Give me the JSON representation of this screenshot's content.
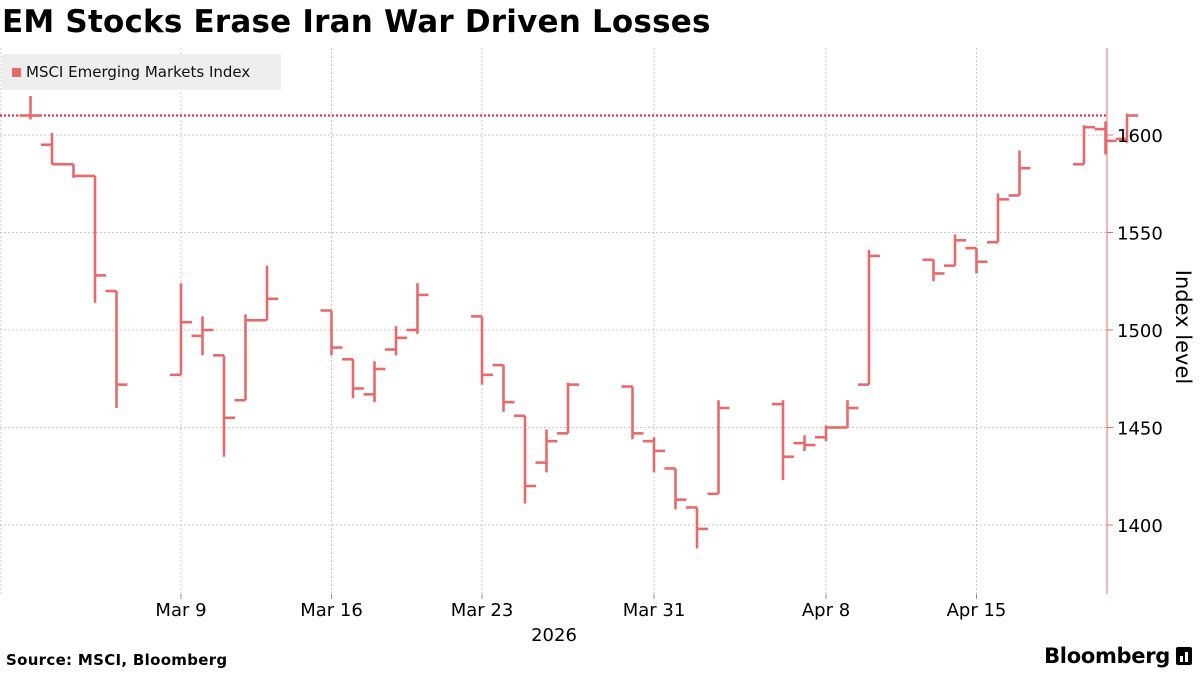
{
  "header": {
    "title": "EM Stocks Erase Iran War Driven Losses"
  },
  "footer": {
    "source": "Source: MSCI, Bloomberg",
    "brand": "Bloomberg"
  },
  "colors": {
    "series": "#e8696b",
    "grid": "#c8c8c8",
    "axis": "#e8696b"
  },
  "chart_data": {
    "type": "ohlc",
    "title": "EM Stocks Erase Iran War Driven Losses",
    "ylabel": "Index level",
    "xlabel": "2026",
    "year": "2026",
    "ylim": [
      1365,
      1643
    ],
    "yticks": [
      1400,
      1450,
      1500,
      1550,
      1600
    ],
    "xticks": [
      {
        "label": "Mar 9",
        "date": "2026-03-09"
      },
      {
        "label": "Mar 16",
        "date": "2026-03-16"
      },
      {
        "label": "Mar 23",
        "date": "2026-03-23"
      },
      {
        "label": "Mar 31",
        "date": "2026-03-31"
      },
      {
        "label": "Apr 8",
        "date": "2026-04-08"
      },
      {
        "label": "Apr 15",
        "date": "2026-04-15"
      }
    ],
    "reference_line": {
      "value": 1610,
      "style": "dotted"
    },
    "legend": {
      "position": "top-left",
      "entries": [
        "MSCI Emerging Markets Index"
      ]
    },
    "grid": true,
    "series": [
      {
        "name": "MSCI Emerging Markets Index",
        "points": [
          {
            "date": "2026-03-02",
            "open": 1610,
            "high": 1620,
            "low": 1608,
            "close": 1610
          },
          {
            "date": "2026-03-03",
            "open": 1595,
            "high": 1601,
            "low": 1585,
            "close": 1585
          },
          {
            "date": "2026-03-04",
            "open": 1585,
            "high": 1585,
            "low": 1578,
            "close": 1579
          },
          {
            "date": "2026-03-05",
            "open": 1579,
            "high": 1579,
            "low": 1514,
            "close": 1528
          },
          {
            "date": "2026-03-06",
            "open": 1520,
            "high": 1520,
            "low": 1460,
            "close": 1472
          },
          {
            "date": "2026-03-09",
            "open": 1477,
            "high": 1524,
            "low": 1477,
            "close": 1504
          },
          {
            "date": "2026-03-10",
            "open": 1497,
            "high": 1507,
            "low": 1487,
            "close": 1500
          },
          {
            "date": "2026-03-11",
            "open": 1487,
            "high": 1487,
            "low": 1435,
            "close": 1455
          },
          {
            "date": "2026-03-12",
            "open": 1464,
            "high": 1508,
            "low": 1464,
            "close": 1505
          },
          {
            "date": "2026-03-13",
            "open": 1505,
            "high": 1533,
            "low": 1505,
            "close": 1516
          },
          {
            "date": "2026-03-16",
            "open": 1510,
            "high": 1510,
            "low": 1487,
            "close": 1491
          },
          {
            "date": "2026-03-17",
            "open": 1485,
            "high": 1485,
            "low": 1465,
            "close": 1470
          },
          {
            "date": "2026-03-18",
            "open": 1467,
            "high": 1484,
            "low": 1463,
            "close": 1480
          },
          {
            "date": "2026-03-19",
            "open": 1490,
            "high": 1502,
            "low": 1487,
            "close": 1496
          },
          {
            "date": "2026-03-20",
            "open": 1500,
            "high": 1524,
            "low": 1498,
            "close": 1518
          },
          {
            "date": "2026-03-23",
            "open": 1507,
            "high": 1507,
            "low": 1472,
            "close": 1477
          },
          {
            "date": "2026-03-24",
            "open": 1482,
            "high": 1482,
            "low": 1458,
            "close": 1463
          },
          {
            "date": "2026-03-25",
            "open": 1456,
            "high": 1456,
            "low": 1411,
            "close": 1420
          },
          {
            "date": "2026-03-26",
            "open": 1432,
            "high": 1449,
            "low": 1427,
            "close": 1443
          },
          {
            "date": "2026-03-27",
            "open": 1447,
            "high": 1473,
            "low": 1447,
            "close": 1472
          },
          {
            "date": "2026-03-30",
            "open": 1471,
            "high": 1471,
            "low": 1444,
            "close": 1447
          },
          {
            "date": "2026-03-31",
            "open": 1443,
            "high": 1445,
            "low": 1427,
            "close": 1438
          },
          {
            "date": "2026-04-01",
            "open": 1429,
            "high": 1429,
            "low": 1408,
            "close": 1413
          },
          {
            "date": "2026-04-02",
            "open": 1409,
            "high": 1409,
            "low": 1388,
            "close": 1398
          },
          {
            "date": "2026-04-03",
            "open": 1416,
            "high": 1464,
            "low": 1416,
            "close": 1460
          },
          {
            "date": "2026-04-06",
            "open": 1462,
            "high": 1464,
            "low": 1423,
            "close": 1435
          },
          {
            "date": "2026-04-07",
            "open": 1442,
            "high": 1446,
            "low": 1438,
            "close": 1441
          },
          {
            "date": "2026-04-08",
            "open": 1445,
            "high": 1451,
            "low": 1443,
            "close": 1450
          },
          {
            "date": "2026-04-09",
            "open": 1450,
            "high": 1464,
            "low": 1450,
            "close": 1460
          },
          {
            "date": "2026-04-10",
            "open": 1472,
            "high": 1541,
            "low": 1472,
            "close": 1538
          },
          {
            "date": "2026-04-13",
            "open": 1536,
            "high": 1536,
            "low": 1525,
            "close": 1529
          },
          {
            "date": "2026-04-14",
            "open": 1533,
            "high": 1549,
            "low": 1533,
            "close": 1546
          },
          {
            "date": "2026-04-15",
            "open": 1542,
            "high": 1542,
            "low": 1529,
            "close": 1535
          },
          {
            "date": "2026-04-16",
            "open": 1545,
            "high": 1570,
            "low": 1545,
            "close": 1567
          },
          {
            "date": "2026-04-17",
            "open": 1569,
            "high": 1592,
            "low": 1569,
            "close": 1583
          },
          {
            "date": "2026-04-20",
            "open": 1585,
            "high": 1605,
            "low": 1585,
            "close": 1604
          },
          {
            "date": "2026-04-21",
            "open": 1603,
            "high": 1607,
            "low": 1590,
            "close": 1597
          },
          {
            "date": "2026-04-22",
            "open": 1598,
            "high": 1611,
            "low": 1596,
            "close": 1610
          }
        ]
      }
    ]
  }
}
